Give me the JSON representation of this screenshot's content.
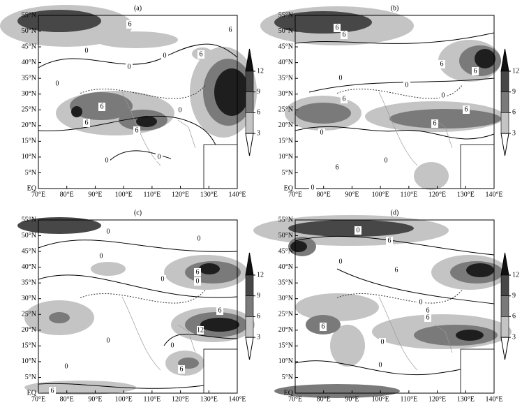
{
  "panels": [
    {
      "label": "(a)",
      "contour_labels": [
        "6",
        "6",
        "6",
        "0",
        "0",
        "0",
        "0",
        "6",
        "6",
        "6",
        "0",
        "0",
        "0"
      ]
    },
    {
      "label": "(b)",
      "contour_labels": [
        "6",
        "6",
        "6",
        "6",
        "0",
        "0",
        "6",
        "0",
        "6",
        "6",
        "0",
        "0",
        "6",
        "0"
      ]
    },
    {
      "label": "(c)",
      "contour_labels": [
        "0",
        "0",
        "0",
        "6",
        "0",
        "0",
        "6",
        "12",
        "0",
        "0",
        "0",
        "6",
        "6"
      ]
    },
    {
      "label": "(d)",
      "contour_labels": [
        "0",
        "6",
        "6",
        "0",
        "0",
        "6",
        "6",
        "6",
        "0",
        "0"
      ]
    }
  ],
  "xtick_labels": [
    "70°E",
    "80°E",
    "90°E",
    "100°E",
    "110°E",
    "120°E",
    "130°E",
    "140°E"
  ],
  "ytick_labels": [
    "EQ",
    "5°N",
    "10°N",
    "15°N",
    "20°N",
    "25°N",
    "30°N",
    "35°N",
    "40°N",
    "45°N",
    "50°N",
    "55°N"
  ],
  "colorbar_ticks": [
    12,
    9,
    6,
    3
  ]
}
